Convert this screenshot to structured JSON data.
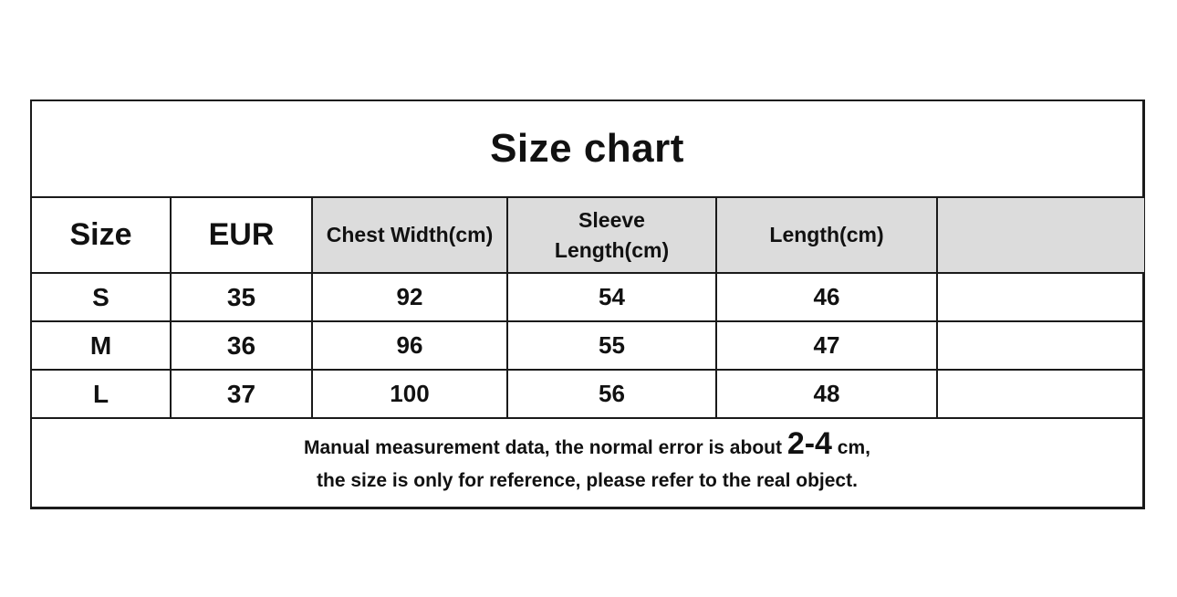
{
  "title": "Size chart",
  "columns": [
    "Size",
    "EUR",
    "Chest Width(cm)",
    "Sleeve",
    "Length(cm)",
    "Length(cm)",
    ""
  ],
  "header": {
    "size": "Size",
    "eur": "EUR",
    "chest": "Chest Width(cm)",
    "sleeve_line1": "Sleeve",
    "sleeve_line2": "Length(cm)",
    "length": "Length(cm)",
    "extra": ""
  },
  "rows": [
    {
      "size": "S",
      "eur": "35",
      "chest": "92",
      "sleeve": "54",
      "length": "46",
      "extra": ""
    },
    {
      "size": "M",
      "eur": "36",
      "chest": "96",
      "sleeve": "55",
      "length": "47",
      "extra": ""
    },
    {
      "size": "L",
      "eur": "37",
      "chest": "100",
      "sleeve": "56",
      "length": "48",
      "extra": ""
    }
  ],
  "note": {
    "line1_before": "Manual measurement data, the normal error is about ",
    "line1_error": "2-4",
    "line1_after": " cm,",
    "line2": "the size is only for reference, please refer to the real object."
  }
}
